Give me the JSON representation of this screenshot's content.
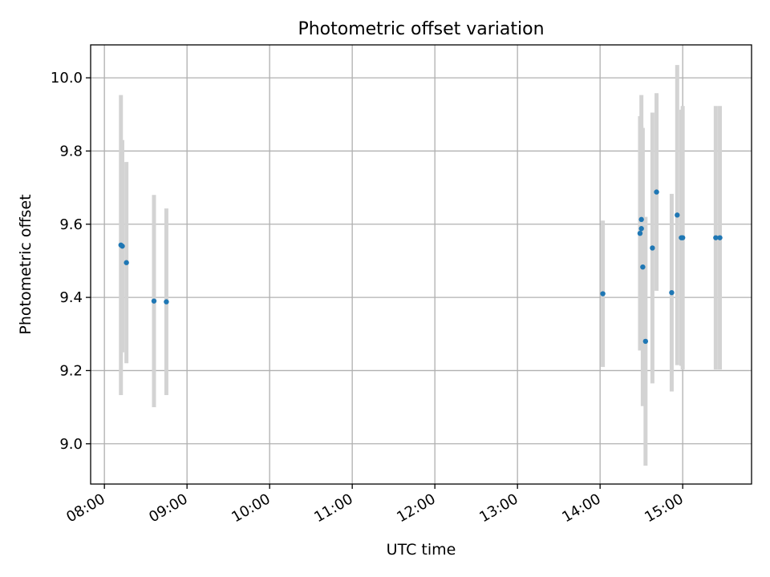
{
  "chart_data": {
    "type": "scatter",
    "title": "Photometric offset variation",
    "xlabel": "UTC time",
    "ylabel": "Photometric offset",
    "x_ticks": [
      "08:00",
      "09:00",
      "10:00",
      "11:00",
      "12:00",
      "13:00",
      "14:00",
      "15:00"
    ],
    "y_ticks": [
      "9.0",
      "9.2",
      "9.4",
      "9.6",
      "9.8",
      "10.0"
    ],
    "xlim": [
      "07:50",
      "15:50"
    ],
    "ylim": [
      8.89,
      10.09
    ],
    "grid": true,
    "point_color": "#1f77b4",
    "errorbar_color": "#d3d3d3",
    "series": [
      {
        "points": [
          {
            "x": "08:12",
            "y": 9.543,
            "err": 0.41
          },
          {
            "x": "08:13",
            "y": 9.54,
            "err": 0.29
          },
          {
            "x": "08:16",
            "y": 9.495,
            "err": 0.275
          },
          {
            "x": "08:36",
            "y": 9.39,
            "err": 0.29
          },
          {
            "x": "08:45",
            "y": 9.388,
            "err": 0.255
          },
          {
            "x": "14:02",
            "y": 9.41,
            "err": 0.2
          },
          {
            "x": "14:29",
            "y": 9.575,
            "err": 0.32
          },
          {
            "x": "14:30",
            "y": 9.613,
            "err": 0.34
          },
          {
            "x": "14:30",
            "y": 9.588,
            "err": 0.28
          },
          {
            "x": "14:31",
            "y": 9.483,
            "err": 0.38
          },
          {
            "x": "14:33",
            "y": 9.28,
            "err": 0.34
          },
          {
            "x": "14:38",
            "y": 9.535,
            "err": 0.37
          },
          {
            "x": "14:41",
            "y": 9.688,
            "err": 0.27
          },
          {
            "x": "14:52",
            "y": 9.413,
            "err": 0.27
          },
          {
            "x": "14:56",
            "y": 9.625,
            "err": 0.41
          },
          {
            "x": "14:59",
            "y": 9.563,
            "err": 0.35
          },
          {
            "x": "15:00",
            "y": 9.563,
            "err": 0.36
          },
          {
            "x": "15:24",
            "y": 9.563,
            "err": 0.36
          },
          {
            "x": "15:27",
            "y": 9.563,
            "err": 0.36
          }
        ]
      }
    ]
  }
}
